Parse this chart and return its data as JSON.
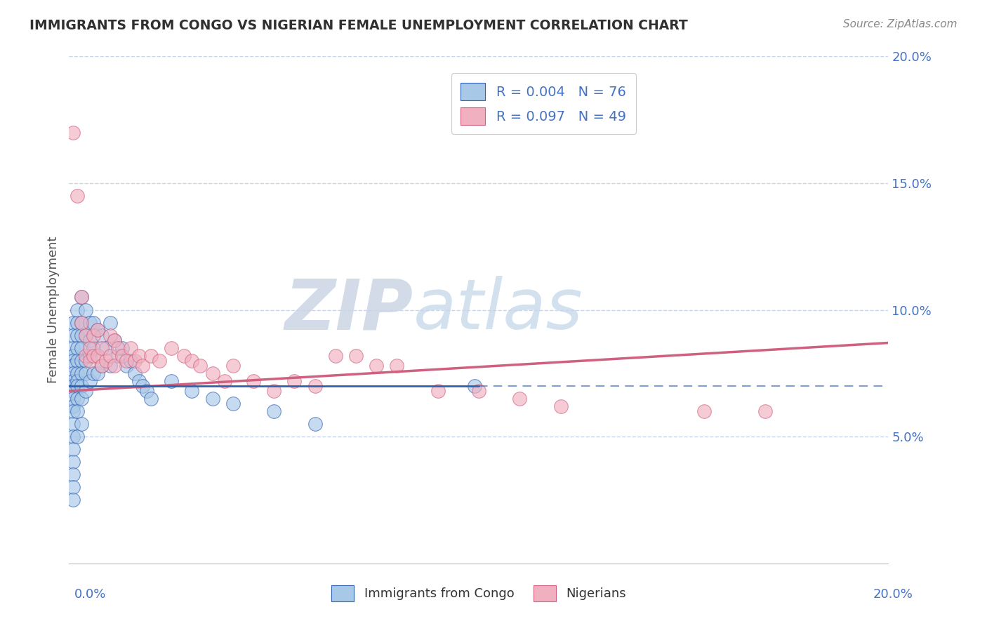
{
  "title": "IMMIGRANTS FROM CONGO VS NIGERIAN FEMALE UNEMPLOYMENT CORRELATION CHART",
  "source": "Source: ZipAtlas.com",
  "ylabel": "Female Unemployment",
  "xlim": [
    0.0,
    0.2
  ],
  "ylim": [
    0.0,
    0.2
  ],
  "legend_blue_label": "R = 0.004   N = 76",
  "legend_pink_label": "R = 0.097   N = 49",
  "legend_label_blue": "Immigrants from Congo",
  "legend_label_pink": "Nigerians",
  "blue_color": "#a8c8e8",
  "pink_color": "#f0b0c0",
  "blue_line_color": "#3060b0",
  "pink_line_color": "#d06080",
  "title_color": "#303030",
  "label_color": "#4472c4",
  "watermark_zip": "ZIP",
  "watermark_atlas": "atlas",
  "background_color": "#ffffff",
  "grid_color": "#c8d4e8",
  "blue_line_solid_end": 0.1,
  "blue_line_y": 0.07,
  "pink_line_start_y": 0.068,
  "pink_line_end_y": 0.087,
  "blue_scatter_x": [
    0.001,
    0.001,
    0.001,
    0.001,
    0.001,
    0.001,
    0.001,
    0.001,
    0.001,
    0.001,
    0.001,
    0.001,
    0.001,
    0.001,
    0.001,
    0.001,
    0.001,
    0.001,
    0.001,
    0.001,
    0.002,
    0.002,
    0.002,
    0.002,
    0.002,
    0.002,
    0.002,
    0.002,
    0.002,
    0.002,
    0.002,
    0.003,
    0.003,
    0.003,
    0.003,
    0.003,
    0.003,
    0.003,
    0.003,
    0.003,
    0.004,
    0.004,
    0.004,
    0.004,
    0.004,
    0.005,
    0.005,
    0.005,
    0.005,
    0.006,
    0.006,
    0.006,
    0.007,
    0.007,
    0.008,
    0.008,
    0.009,
    0.01,
    0.01,
    0.011,
    0.012,
    0.013,
    0.014,
    0.015,
    0.016,
    0.017,
    0.018,
    0.019,
    0.02,
    0.025,
    0.03,
    0.035,
    0.04,
    0.05,
    0.06,
    0.099
  ],
  "blue_scatter_y": [
    0.095,
    0.09,
    0.085,
    0.082,
    0.08,
    0.078,
    0.075,
    0.072,
    0.07,
    0.068,
    0.065,
    0.062,
    0.06,
    0.055,
    0.05,
    0.045,
    0.04,
    0.035,
    0.03,
    0.025,
    0.1,
    0.095,
    0.09,
    0.085,
    0.08,
    0.075,
    0.072,
    0.07,
    0.065,
    0.06,
    0.05,
    0.105,
    0.095,
    0.09,
    0.085,
    0.08,
    0.075,
    0.07,
    0.065,
    0.055,
    0.1,
    0.09,
    0.08,
    0.075,
    0.068,
    0.095,
    0.088,
    0.082,
    0.072,
    0.095,
    0.085,
    0.075,
    0.092,
    0.075,
    0.09,
    0.078,
    0.085,
    0.095,
    0.078,
    0.088,
    0.082,
    0.085,
    0.078,
    0.08,
    0.075,
    0.072,
    0.07,
    0.068,
    0.065,
    0.072,
    0.068,
    0.065,
    0.063,
    0.06,
    0.055,
    0.07
  ],
  "pink_scatter_x": [
    0.001,
    0.002,
    0.003,
    0.003,
    0.004,
    0.004,
    0.005,
    0.005,
    0.006,
    0.006,
    0.007,
    0.007,
    0.008,
    0.008,
    0.009,
    0.01,
    0.01,
    0.011,
    0.011,
    0.012,
    0.013,
    0.014,
    0.015,
    0.016,
    0.017,
    0.018,
    0.02,
    0.022,
    0.025,
    0.028,
    0.03,
    0.032,
    0.035,
    0.038,
    0.04,
    0.045,
    0.05,
    0.055,
    0.06,
    0.065,
    0.07,
    0.075,
    0.08,
    0.09,
    0.1,
    0.11,
    0.12,
    0.155,
    0.17
  ],
  "pink_scatter_y": [
    0.17,
    0.145,
    0.105,
    0.095,
    0.09,
    0.082,
    0.085,
    0.08,
    0.09,
    0.082,
    0.092,
    0.082,
    0.085,
    0.078,
    0.08,
    0.09,
    0.082,
    0.088,
    0.078,
    0.085,
    0.082,
    0.08,
    0.085,
    0.08,
    0.082,
    0.078,
    0.082,
    0.08,
    0.085,
    0.082,
    0.08,
    0.078,
    0.075,
    0.072,
    0.078,
    0.072,
    0.068,
    0.072,
    0.07,
    0.082,
    0.082,
    0.078,
    0.078,
    0.068,
    0.068,
    0.065,
    0.062,
    0.06,
    0.06
  ]
}
